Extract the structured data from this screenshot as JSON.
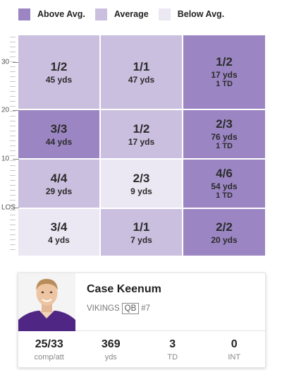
{
  "legend": [
    {
      "label": "Above Avg.",
      "color": "#9b86c3"
    },
    {
      "label": "Average",
      "color": "#cbbfdf"
    },
    {
      "label": "Below Avg.",
      "color": "#ebe8f3"
    }
  ],
  "yard_markers": [
    "30",
    "20",
    "10",
    "LOS"
  ],
  "grid": {
    "rows": [
      [
        {
          "ratio": "1/2",
          "yds": "45 yds",
          "td": "",
          "level": "average"
        },
        {
          "ratio": "1/1",
          "yds": "47 yds",
          "td": "",
          "level": "average"
        },
        {
          "ratio": "1/2",
          "yds": "17 yds",
          "td": "1 TD",
          "level": "above"
        }
      ],
      [
        {
          "ratio": "3/3",
          "yds": "44 yds",
          "td": "",
          "level": "above"
        },
        {
          "ratio": "1/2",
          "yds": "17 yds",
          "td": "",
          "level": "average"
        },
        {
          "ratio": "2/3",
          "yds": "76 yds",
          "td": "1 TD",
          "level": "above"
        }
      ],
      [
        {
          "ratio": "4/4",
          "yds": "29 yds",
          "td": "",
          "level": "average"
        },
        {
          "ratio": "2/3",
          "yds": "9 yds",
          "td": "",
          "level": "below"
        },
        {
          "ratio": "4/6",
          "yds": "54 yds",
          "td": "1 TD",
          "level": "above"
        }
      ],
      [
        {
          "ratio": "3/4",
          "yds": "4 yds",
          "td": "",
          "level": "below"
        },
        {
          "ratio": "1/1",
          "yds": "7 yds",
          "td": "",
          "level": "average"
        },
        {
          "ratio": "2/2",
          "yds": "20 yds",
          "td": "",
          "level": "above"
        }
      ]
    ]
  },
  "player": {
    "name": "Case Keenum",
    "team": "VIKINGS",
    "position": "QB",
    "number": "#7",
    "avatar_icon": "player-headshot"
  },
  "stats": [
    {
      "value": "25/33",
      "label": "comp/att"
    },
    {
      "value": "369",
      "label": "yds"
    },
    {
      "value": "3",
      "label": "TD"
    },
    {
      "value": "0",
      "label": "INT"
    }
  ]
}
